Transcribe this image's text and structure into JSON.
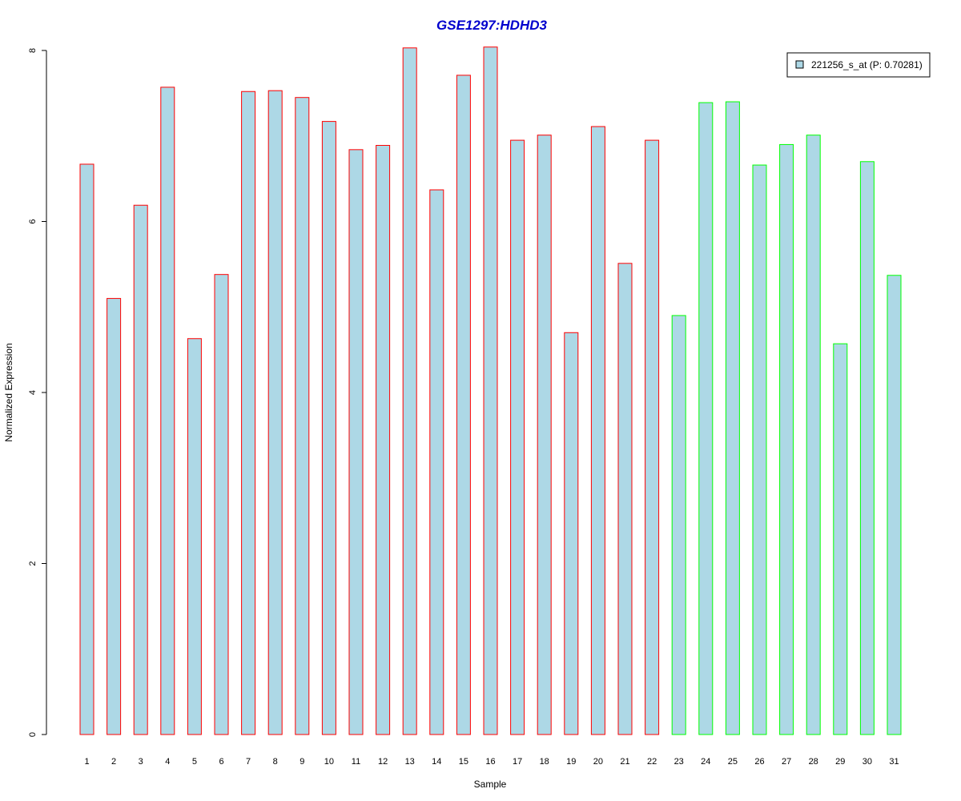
{
  "chart_data": {
    "type": "bar",
    "title": "GSE1297:HDHD3",
    "xlabel": "Sample",
    "ylabel": "Normalized Expression",
    "ylim": [
      0,
      8
    ],
    "yticks": [
      "0",
      "2",
      "4",
      "6",
      "8"
    ],
    "grid": false,
    "legend_position": "top-right",
    "legend": [
      {
        "label": "221256_s_at (P: 0.70281)",
        "fill": "#ADD8E6"
      }
    ],
    "categories": [
      "1",
      "2",
      "3",
      "4",
      "5",
      "6",
      "7",
      "8",
      "9",
      "10",
      "11",
      "12",
      "13",
      "14",
      "15",
      "16",
      "17",
      "18",
      "19",
      "20",
      "21",
      "22",
      "23",
      "24",
      "25",
      "26",
      "27",
      "28",
      "29",
      "30",
      "31"
    ],
    "values": [
      6.67,
      5.1,
      6.19,
      7.57,
      4.63,
      5.38,
      7.52,
      7.53,
      7.45,
      7.17,
      6.84,
      6.89,
      8.03,
      6.37,
      7.71,
      8.04,
      6.95,
      7.01,
      4.7,
      7.11,
      5.51,
      6.95,
      4.9,
      7.39,
      7.4,
      6.66,
      6.9,
      7.01,
      4.57,
      6.7,
      5.37
    ],
    "groups": [
      "red",
      "red",
      "red",
      "red",
      "red",
      "red",
      "red",
      "red",
      "red",
      "red",
      "red",
      "red",
      "red",
      "red",
      "red",
      "red",
      "red",
      "red",
      "red",
      "red",
      "red",
      "red",
      "green",
      "green",
      "green",
      "green",
      "green",
      "green",
      "green",
      "green",
      "green"
    ],
    "colors": {
      "bar_fill": "#ADD8E6",
      "group_red": "#FF0000",
      "group_green": "#00FF00",
      "title": "#0000CD",
      "axis": "#000000"
    }
  }
}
